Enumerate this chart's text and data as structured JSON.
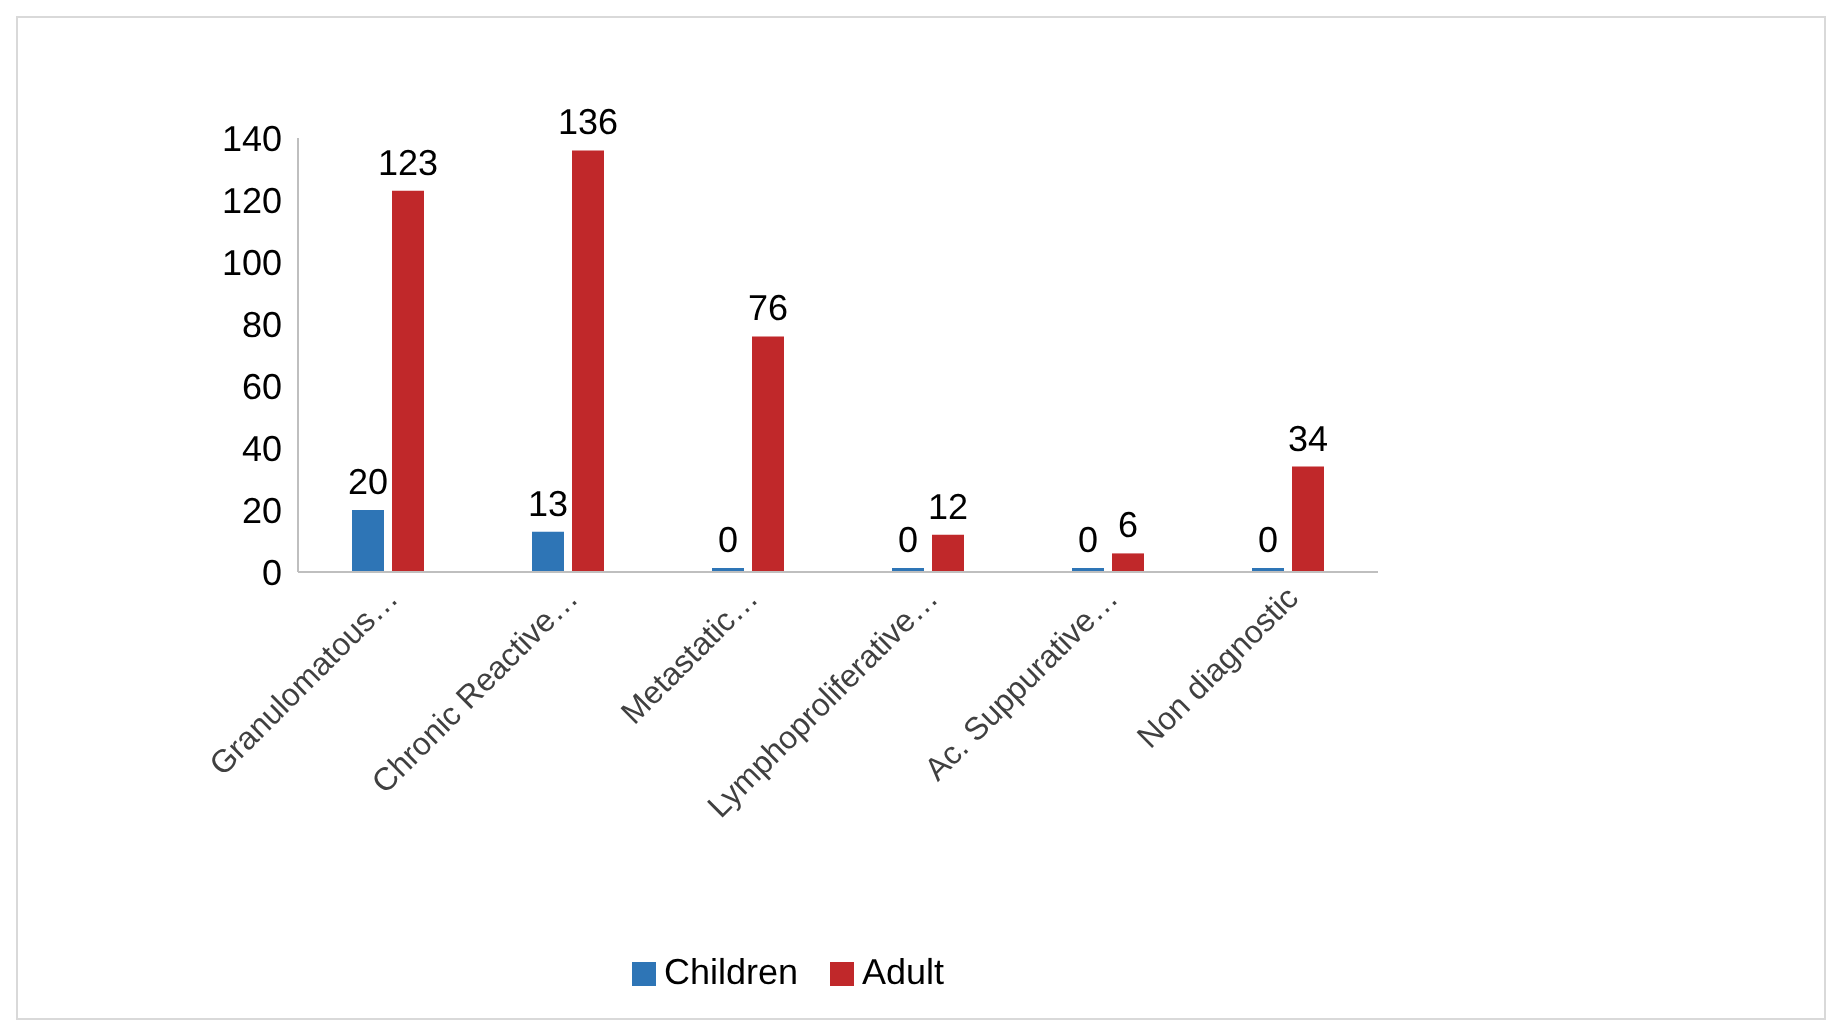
{
  "chart_data": {
    "type": "bar",
    "categories": [
      "Granulomatous…",
      "Chronic Reactive…",
      "Metastatic…",
      "Lymphoproliferative…",
      "Ac. Suppurative…",
      "Non diagnostic"
    ],
    "series": [
      {
        "name": "Children",
        "color": "#2e75b6",
        "values": [
          20,
          13,
          0,
          0,
          0,
          0
        ]
      },
      {
        "name": "Adult",
        "color": "#c0282a",
        "values": [
          123,
          136,
          76,
          12,
          6,
          34
        ]
      }
    ],
    "ylim": [
      0,
      140
    ],
    "yticks": [
      0,
      20,
      40,
      60,
      80,
      100,
      120,
      140
    ],
    "grid": false,
    "legend": "bottom",
    "data_labels": true
  }
}
